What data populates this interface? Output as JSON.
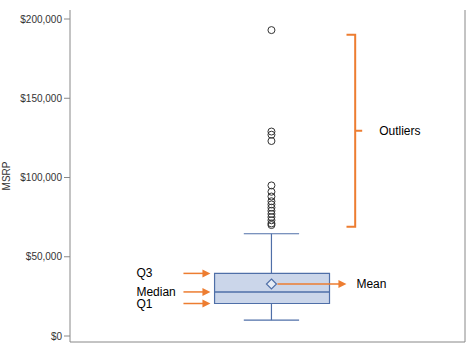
{
  "chart_data": {
    "type": "box",
    "ylabel": "MSRP",
    "ylim": [
      0,
      200000
    ],
    "yticks": [
      {
        "value": 0,
        "label": "$0"
      },
      {
        "value": 50000,
        "label": "$50,000"
      },
      {
        "value": 100000,
        "label": "$100,000"
      },
      {
        "value": 150000,
        "label": "$150,000"
      },
      {
        "value": 200000,
        "label": "$200,000"
      }
    ],
    "tick_labels": "y",
    "color": "#cbd6ea",
    "box": {
      "min": 10000,
      "q1": 20500,
      "median": 27800,
      "q3": 39500,
      "max": 64500,
      "mean": 32800
    },
    "outliers": [
      193000,
      129000,
      127000,
      123000,
      95000,
      91000,
      88000,
      85000,
      83000,
      81000,
      79000,
      77000,
      75000,
      73000,
      71000,
      70000
    ],
    "annotations": [
      {
        "text": "Q3",
        "stat": "q3"
      },
      {
        "text": "Median",
        "stat": "median"
      },
      {
        "text": "Q1",
        "stat": "q1"
      },
      {
        "text": "Mean",
        "stat": "mean"
      },
      {
        "text": "Outliers",
        "range": [
          69000,
          190000
        ]
      }
    ]
  }
}
